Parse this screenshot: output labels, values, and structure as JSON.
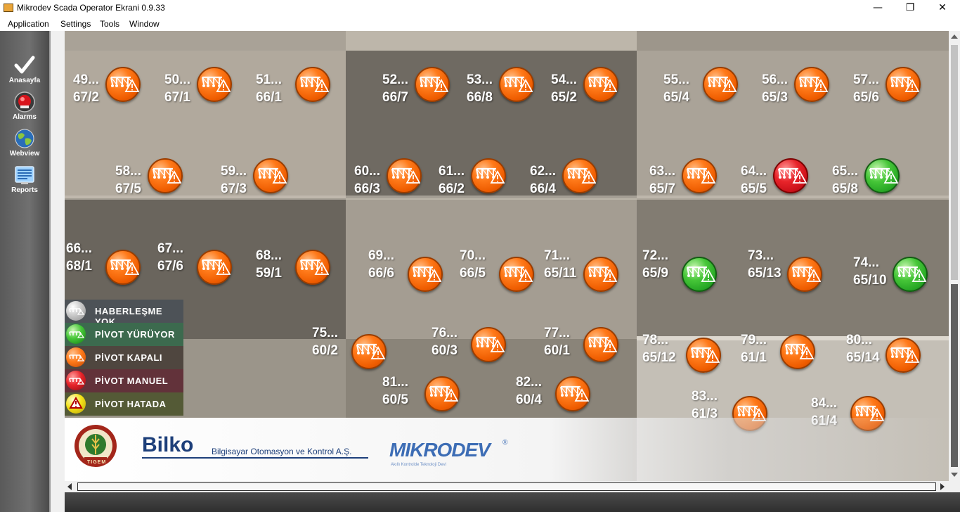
{
  "window": {
    "title": "Mikrodev Scada Operator Ekrani 0.9.33",
    "minimize_glyph": "—",
    "restore_glyph": "❐",
    "close_glyph": "✕"
  },
  "menu": {
    "items": [
      "Application",
      "Settings",
      "Tools",
      "Window"
    ]
  },
  "sidebar": {
    "items": [
      {
        "label": "Anasayfa",
        "icon": "checkmark-icon"
      },
      {
        "label": "Alarms",
        "icon": "alarm-siren-icon"
      },
      {
        "label": "Webview",
        "icon": "globe-icon"
      },
      {
        "label": "Reports",
        "icon": "report-screen-icon"
      }
    ]
  },
  "pivots": [
    {
      "name": "49...",
      "code": "67/2",
      "status": "orange"
    },
    {
      "name": "50...",
      "code": "67/1",
      "status": "orange"
    },
    {
      "name": "51...",
      "code": "66/1",
      "status": "orange"
    },
    {
      "name": "52...",
      "code": "66/7",
      "status": "orange"
    },
    {
      "name": "53...",
      "code": "66/8",
      "status": "orange"
    },
    {
      "name": "54...",
      "code": "65/2",
      "status": "orange"
    },
    {
      "name": "55...",
      "code": "65/4",
      "status": "orange"
    },
    {
      "name": "56...",
      "code": "65/3",
      "status": "orange"
    },
    {
      "name": "57...",
      "code": "65/6",
      "status": "orange"
    },
    {
      "name": "58...",
      "code": "67/5",
      "status": "orange"
    },
    {
      "name": "59...",
      "code": "67/3",
      "status": "orange"
    },
    {
      "name": "60...",
      "code": "66/3",
      "status": "orange"
    },
    {
      "name": "61...",
      "code": "66/2",
      "status": "orange"
    },
    {
      "name": "62...",
      "code": "66/4",
      "status": "orange"
    },
    {
      "name": "63...",
      "code": "65/7",
      "status": "orange"
    },
    {
      "name": "64...",
      "code": "65/5",
      "status": "red"
    },
    {
      "name": "65...",
      "code": "65/8",
      "status": "green"
    },
    {
      "name": "66...",
      "code": "68/1",
      "status": "orange"
    },
    {
      "name": "67...",
      "code": "67/6",
      "status": "orange"
    },
    {
      "name": "68...",
      "code": "59/1",
      "status": "orange"
    },
    {
      "name": "69...",
      "code": "66/6",
      "status": "orange"
    },
    {
      "name": "70...",
      "code": "66/5",
      "status": "orange"
    },
    {
      "name": "71...",
      "code": "65/11",
      "status": "orange"
    },
    {
      "name": "72...",
      "code": "65/9",
      "status": "green"
    },
    {
      "name": "73...",
      "code": "65/13",
      "status": "orange"
    },
    {
      "name": "74...",
      "code": "65/10",
      "status": "green"
    },
    {
      "name": "75...",
      "code": "60/2",
      "status": "orange"
    },
    {
      "name": "76...",
      "code": "60/3",
      "status": "orange"
    },
    {
      "name": "77...",
      "code": "60/1",
      "status": "orange"
    },
    {
      "name": "78...",
      "code": "65/12",
      "status": "orange"
    },
    {
      "name": "79...",
      "code": "61/1",
      "status": "orange"
    },
    {
      "name": "80...",
      "code": "65/14",
      "status": "orange"
    },
    {
      "name": "81...",
      "code": "60/5",
      "status": "orange"
    },
    {
      "name": "82...",
      "code": "60/4",
      "status": "orange"
    },
    {
      "name": "83...",
      "code": "61/3",
      "status": "orange"
    },
    {
      "name": "84...",
      "code": "61/4",
      "status": "orange"
    }
  ],
  "legend": [
    {
      "label": "HABERLEŞME YOK",
      "status": "gray",
      "bg": "#4d5257"
    },
    {
      "label": "PİVOT YÜRÜYOR",
      "status": "green",
      "bg": "#3c6a4e"
    },
    {
      "label": "PİVOT KAPALI",
      "status": "orange",
      "bg": "#4f463f"
    },
    {
      "label": "PİVOT MANUEL",
      "status": "red",
      "bg": "#62323a"
    },
    {
      "label": "PİVOT HATADA",
      "status": "yellow",
      "bg": "#545a36"
    }
  ],
  "footer": {
    "logo_seal_text": "TIGEM",
    "bilko_name": "Bilko",
    "bilko_tagline": "Bilgisayar Otomasyon ve Kontrol A.Ş.",
    "mikrodev_name": "MIKRODEV",
    "mikrodev_registered": "®",
    "mikrodev_tagline": "Akıllı Kontrolde Teknoloji Devi"
  },
  "colors": {
    "orange": "#ff6a00",
    "green": "#2fb52e",
    "red": "#d4141c",
    "gray": "#b5b5b5",
    "yellow": "#f3e217"
  }
}
